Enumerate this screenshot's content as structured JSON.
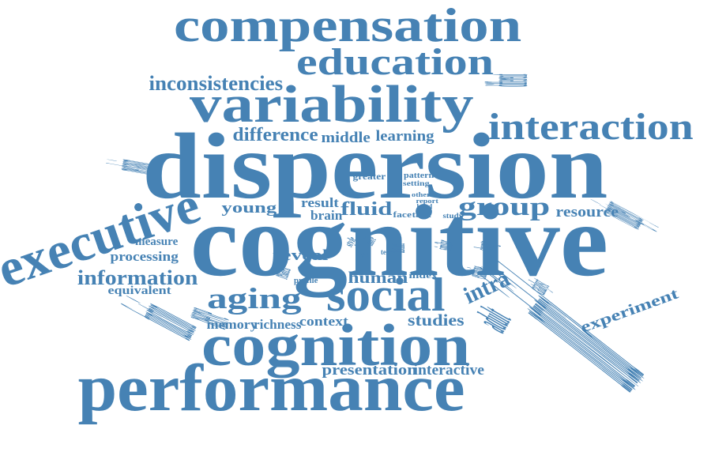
{
  "color": "#4682b4",
  "background": "#ffffff",
  "words": [
    "compensation",
    "education",
    "inconsistencies",
    "variability",
    "different",
    "difference",
    "middle",
    "learning",
    "interaction",
    "mechanism",
    "dispersion",
    "greater",
    "pattern",
    "setting",
    "other",
    "report",
    "hand",
    "contingency",
    "executive",
    "young",
    "result",
    "brain",
    "fluid",
    "face",
    "task",
    "group",
    "resource",
    "study",
    "cognitive",
    "individual",
    "measure",
    "rich",
    "style",
    "level",
    "more",
    "term",
    "distinct",
    "similar",
    "change",
    "processing",
    "related",
    "reveal",
    "information",
    "profile",
    "human",
    "index",
    "examine",
    "intra",
    "catalyst",
    "equivalent",
    "aging",
    "social",
    "function",
    "reserve",
    "experiment",
    "memory",
    "richness",
    "context",
    "studies",
    "adult",
    "cognition",
    "presentation",
    "interactive",
    "performance"
  ]
}
